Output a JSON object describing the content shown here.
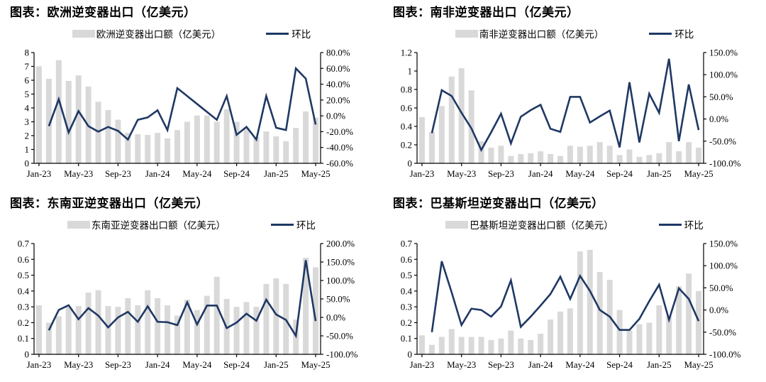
{
  "colors": {
    "background": "#ffffff",
    "bar_fill": "#d9d9d9",
    "line_stroke": "#1f3864",
    "axis_line": "#000000",
    "title_color": "#000000"
  },
  "chart_data": [
    {
      "type": "bar",
      "title": "图表：欧洲逆变器出口（亿美元）",
      "grid": false,
      "legend_position": "top",
      "categories": [
        "Jan-23",
        "Feb-23",
        "Mar-23",
        "Apr-23",
        "May-23",
        "Jun-23",
        "Jul-23",
        "Aug-23",
        "Sep-23",
        "Oct-23",
        "Nov-23",
        "Dec-23",
        "Jan-24",
        "Feb-24",
        "Mar-24",
        "Apr-24",
        "May-24",
        "Jun-24",
        "Jul-24",
        "Aug-24",
        "Sep-24",
        "Oct-24",
        "Nov-24",
        "Dec-24",
        "Jan-25",
        "Feb-25",
        "Mar-25",
        "Apr-25",
        "May-25"
      ],
      "x_tick_labels": [
        "Jan-23",
        "May-23",
        "Sep-23",
        "Jan-24",
        "May-24",
        "Sep-24",
        "Jan-25",
        "May-25"
      ],
      "left_axis": {
        "min": 0,
        "max": 8,
        "step": 1,
        "tick_labels": [
          "0",
          "1",
          "2",
          "3",
          "4",
          "5",
          "6",
          "7",
          "8"
        ]
      },
      "right_axis": {
        "min": -60,
        "max": 80,
        "step": 20,
        "tick_labels": [
          "-60.0%",
          "-40.0%",
          "-20.0%",
          "0.0%",
          "20.0%",
          "40.0%",
          "60.0%",
          "80.0%"
        ]
      },
      "series": [
        {
          "name": "欧洲逆变器出口额（亿美元）",
          "kind": "bar",
          "axis": "left",
          "values": [
            7.0,
            6.1,
            7.45,
            5.95,
            6.35,
            5.55,
            4.45,
            3.85,
            3.15,
            2.2,
            2.1,
            2.05,
            2.2,
            1.8,
            2.4,
            3.0,
            3.45,
            3.45,
            3.0,
            3.9,
            3.0,
            2.55,
            1.9,
            2.3,
            1.95,
            1.6,
            2.55,
            3.75,
            3.3
          ]
        },
        {
          "name": "环比",
          "kind": "line",
          "axis": "right",
          "values": [
            null,
            -13,
            21,
            -21,
            6,
            -13,
            -20,
            -14,
            -19,
            -30,
            -5,
            -2,
            7,
            -18,
            35,
            25,
            15,
            5,
            -5,
            25,
            -24,
            -14,
            -30,
            25,
            -15,
            -18,
            60,
            47,
            -11
          ]
        }
      ]
    },
    {
      "type": "bar",
      "title": "图表：南非逆变器出口（亿美元）",
      "grid": false,
      "legend_position": "top",
      "categories": [
        "Jan-23",
        "Feb-23",
        "Mar-23",
        "Apr-23",
        "May-23",
        "Jun-23",
        "Jul-23",
        "Aug-23",
        "Sep-23",
        "Oct-23",
        "Nov-23",
        "Dec-23",
        "Jan-24",
        "Feb-24",
        "Mar-24",
        "Apr-24",
        "May-24",
        "Jun-24",
        "Jul-24",
        "Aug-24",
        "Sep-24",
        "Oct-24",
        "Nov-24",
        "Dec-24",
        "Jan-25",
        "Feb-25",
        "Mar-25",
        "Apr-25",
        "May-25"
      ],
      "x_tick_labels": [
        "Jan-23",
        "May-23",
        "Sep-23",
        "Jan-24",
        "May-24",
        "Sep-24",
        "Jan-25",
        "May-25"
      ],
      "left_axis": {
        "min": 0,
        "max": 1.2,
        "step": 0.2,
        "tick_labels": [
          "0",
          "0.2",
          "0.4",
          "0.6",
          "0.8",
          "1",
          "1.2"
        ]
      },
      "right_axis": {
        "min": -100,
        "max": 150,
        "step": 50,
        "tick_labels": [
          "-100.0%",
          "-50.0%",
          "0.0%",
          "50.0%",
          "100.0%",
          "150.0%"
        ]
      },
      "series": [
        {
          "name": "南非逆变器出口额（亿美元）",
          "kind": "bar",
          "axis": "left",
          "values": [
            0.5,
            0.34,
            0.62,
            0.94,
            1.03,
            0.79,
            0.24,
            0.17,
            0.19,
            0.08,
            0.1,
            0.11,
            0.13,
            0.1,
            0.08,
            0.19,
            0.18,
            0.19,
            0.23,
            0.19,
            0.09,
            0.15,
            0.07,
            0.09,
            0.11,
            0.23,
            0.13,
            0.23,
            0.17
          ]
        },
        {
          "name": "环比",
          "kind": "line",
          "axis": "right",
          "values": [
            null,
            -32,
            65,
            52,
            14,
            -21,
            -70,
            -30,
            12,
            -55,
            5,
            20,
            32,
            -22,
            -29,
            50,
            50,
            -8,
            6,
            19,
            -64,
            83,
            -53,
            57,
            14,
            136,
            -50,
            78,
            -25
          ]
        }
      ]
    },
    {
      "type": "bar",
      "title": "图表：东南亚逆变器出口（亿美元）",
      "grid": false,
      "legend_position": "top",
      "categories": [
        "Jan-23",
        "Feb-23",
        "Mar-23",
        "Apr-23",
        "May-23",
        "Jun-23",
        "Jul-23",
        "Aug-23",
        "Sep-23",
        "Oct-23",
        "Nov-23",
        "Dec-23",
        "Jan-24",
        "Feb-24",
        "Mar-24",
        "Apr-24",
        "May-24",
        "Jun-24",
        "Jul-24",
        "Aug-24",
        "Sep-24",
        "Oct-24",
        "Nov-24",
        "Dec-24",
        "Jan-25",
        "Feb-25",
        "Mar-25",
        "Apr-25",
        "May-25"
      ],
      "x_tick_labels": [
        "Jan-23",
        "May-23",
        "Sep-23",
        "Jan-24",
        "May-24",
        "Sep-24",
        "Jan-25",
        "May-25"
      ],
      "left_axis": {
        "min": 0,
        "max": 0.7,
        "step": 0.1,
        "tick_labels": [
          "0",
          "0.1",
          "0.2",
          "0.3",
          "0.4",
          "0.5",
          "0.6",
          "0.7"
        ]
      },
      "right_axis": {
        "min": -100,
        "max": 200,
        "step": 50,
        "tick_labels": [
          "-100.0%",
          "-50.0%",
          "0.0%",
          "50.0%",
          "100.0%",
          "150.0%",
          "200.0%"
        ]
      },
      "series": [
        {
          "name": "东南亚逆变器出口额（亿美元）",
          "kind": "bar",
          "axis": "left",
          "values": [
            0.31,
            0.2,
            0.24,
            0.3,
            0.305,
            0.39,
            0.405,
            0.305,
            0.3,
            0.355,
            0.31,
            0.405,
            0.355,
            0.31,
            0.245,
            0.345,
            0.28,
            0.37,
            0.49,
            0.35,
            0.3,
            0.33,
            0.3,
            0.445,
            0.48,
            0.445,
            0.22,
            0.61,
            0.55
          ]
        },
        {
          "name": "环比",
          "kind": "line",
          "axis": "right",
          "values": [
            null,
            -35,
            20,
            33,
            -5,
            25,
            5,
            -27,
            0,
            15,
            -12,
            30,
            -12,
            -13,
            -21,
            41,
            -19,
            32,
            32,
            -29,
            -14,
            10,
            -9,
            48,
            8,
            -7,
            -50,
            155,
            -10
          ]
        }
      ]
    },
    {
      "type": "bar",
      "title": "图表：巴基斯坦逆变器出口（亿美元）",
      "grid": false,
      "legend_position": "top",
      "categories": [
        "Jan-23",
        "Feb-23",
        "Mar-23",
        "Apr-23",
        "May-23",
        "Jun-23",
        "Jul-23",
        "Aug-23",
        "Sep-23",
        "Oct-23",
        "Nov-23",
        "Dec-23",
        "Jan-24",
        "Feb-24",
        "Mar-24",
        "Apr-24",
        "May-24",
        "Jun-24",
        "Jul-24",
        "Aug-24",
        "Sep-24",
        "Oct-24",
        "Nov-24",
        "Dec-24",
        "Jan-25",
        "Feb-25",
        "Mar-25",
        "Apr-25",
        "May-25"
      ],
      "x_tick_labels": [
        "Jan-23",
        "May-23",
        "Sep-23",
        "Jan-24",
        "May-24",
        "Sep-24",
        "Jan-25",
        "May-25"
      ],
      "left_axis": {
        "min": 0,
        "max": 0.7,
        "step": 0.1,
        "tick_labels": [
          "0",
          "0.1",
          "0.2",
          "0.3",
          "0.4",
          "0.5",
          "0.6",
          "0.7"
        ]
      },
      "right_axis": {
        "min": -100,
        "max": 150,
        "step": 50,
        "tick_labels": [
          "-100.0%",
          "-50.0%",
          "0.0%",
          "50.0%",
          "100.0%",
          "150.0%"
        ]
      },
      "series": [
        {
          "name": "巴基斯坦逆变器出口额（亿美元）",
          "kind": "bar",
          "axis": "left",
          "values": [
            0.12,
            0.06,
            0.11,
            0.16,
            0.11,
            0.11,
            0.11,
            0.09,
            0.1,
            0.15,
            0.1,
            0.09,
            0.13,
            0.22,
            0.27,
            0.29,
            0.65,
            0.66,
            0.52,
            0.47,
            0.28,
            0.15,
            0.19,
            0.2,
            0.31,
            0.24,
            0.43,
            0.51,
            0.4
          ]
        },
        {
          "name": "环比",
          "kind": "line",
          "axis": "right",
          "values": [
            null,
            -50,
            110,
            40,
            -34,
            3,
            0,
            -15,
            8,
            67,
            -38,
            -15,
            10,
            36,
            75,
            25,
            77,
            43,
            0,
            -15,
            -45,
            -45,
            -20,
            20,
            57,
            -22,
            49,
            25,
            -25
          ]
        }
      ]
    }
  ]
}
